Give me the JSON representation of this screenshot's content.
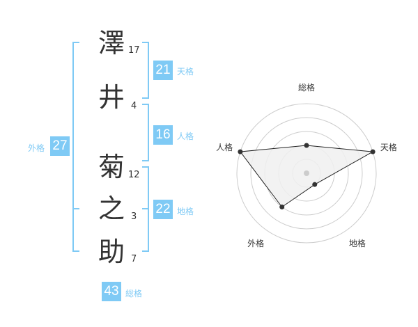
{
  "name": {
    "characters": [
      {
        "char": "澤",
        "strokes": "17"
      },
      {
        "char": "井",
        "strokes": "4"
      },
      {
        "char": "菊",
        "strokes": "12"
      },
      {
        "char": "之",
        "strokes": "3"
      },
      {
        "char": "助",
        "strokes": "7"
      }
    ]
  },
  "fortunes": {
    "tenkaku": {
      "label": "天格",
      "value": "21"
    },
    "jinkaku": {
      "label": "人格",
      "value": "16"
    },
    "chikaku": {
      "label": "地格",
      "value": "22"
    },
    "gaikaku": {
      "label": "外格",
      "value": "27"
    },
    "soukaku": {
      "label": "総格",
      "value": "43"
    }
  },
  "colors": {
    "accent": "#7fcaf5",
    "polygon_fill": "#f0f0f0",
    "ring": "#cccccc"
  },
  "chart_data": {
    "type": "radar",
    "axes": [
      "総格",
      "天格",
      "地格",
      "外格",
      "人格"
    ],
    "values": [
      2,
      5,
      1,
      3,
      5
    ],
    "max": 5,
    "rings": 5
  }
}
